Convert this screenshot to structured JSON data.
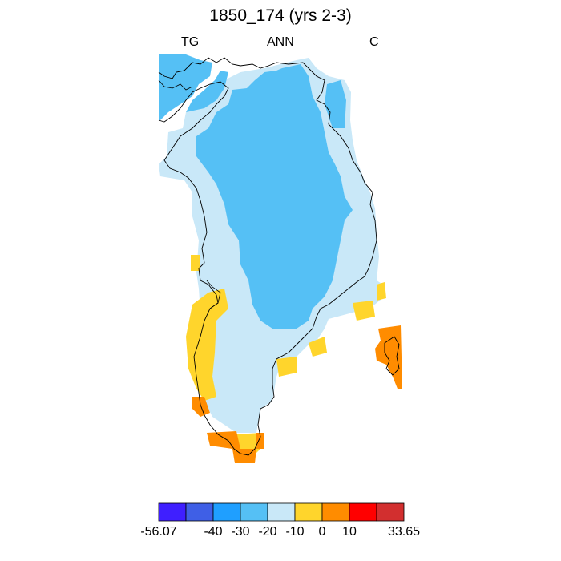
{
  "title": "1850_174 (yrs 2-3)",
  "subtitle_left": "TG",
  "subtitle_center": "ANN",
  "subtitle_right": "C",
  "colorbar": {
    "colors": [
      "#3f1fff",
      "#3f5fe6",
      "#1f9fff",
      "#55c0f5",
      "#c9e8f8",
      "#ffd52c",
      "#ff8c00",
      "#ff0000",
      "#d22f2f"
    ],
    "labels": [
      "-56.07",
      "-40",
      "-30",
      "-20",
      "-10",
      "0",
      "10",
      "33.65"
    ]
  },
  "legend_colors": {
    "minus20_to_minus10": "#55c0f5",
    "minus10_to_0": "#c9e8f8",
    "0_to_10": "#ffd52c",
    "10_to_20": "#ff8c00"
  }
}
